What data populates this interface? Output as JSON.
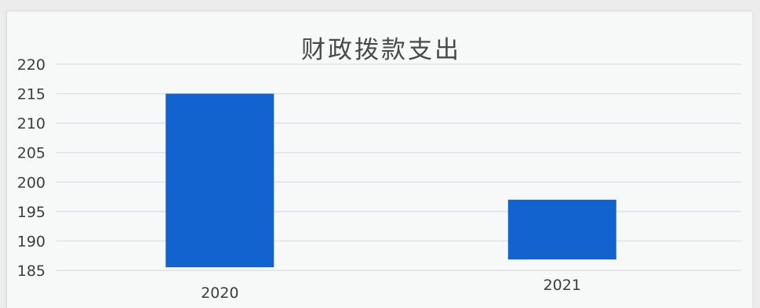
{
  "chart_data": {
    "type": "bar",
    "title": "财政拨款支出",
    "categories": [
      "2020",
      "2021"
    ],
    "values": [
      215,
      197
    ],
    "ylim": [
      185,
      220
    ],
    "yticks": [
      220,
      215,
      210,
      205,
      200,
      195,
      190,
      185
    ],
    "grid": true,
    "legend": "none",
    "bar_color": "#1262cf",
    "grid_color": "#d8dde6"
  }
}
